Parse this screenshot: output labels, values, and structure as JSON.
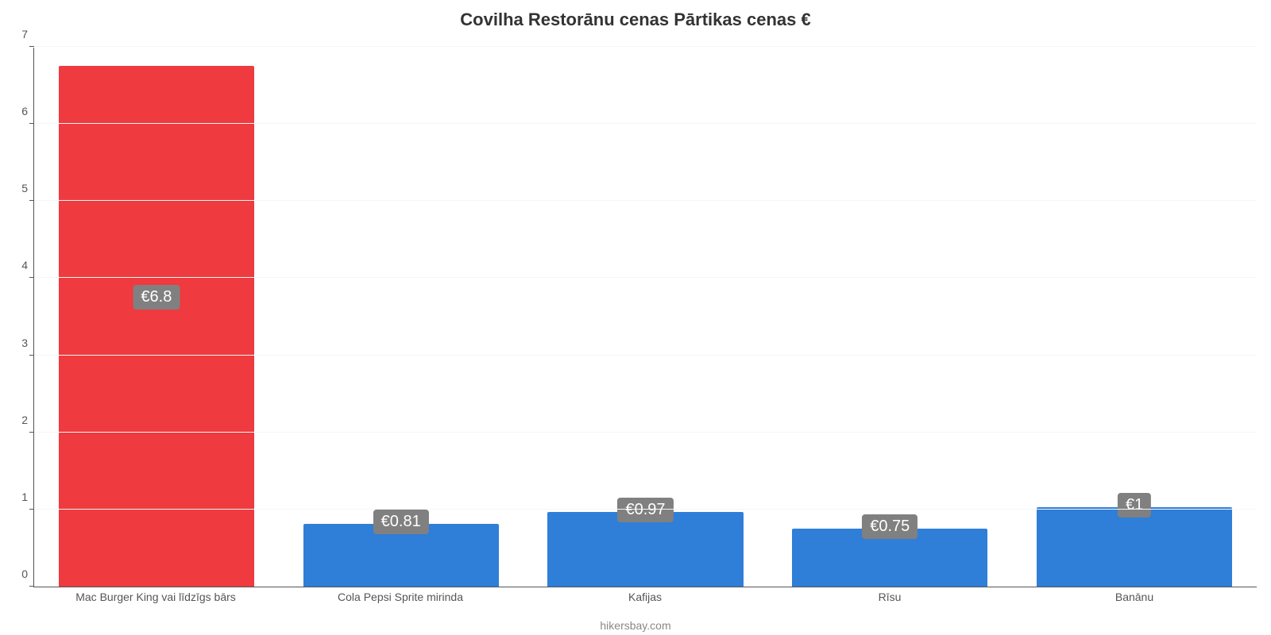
{
  "chart": {
    "type": "bar",
    "title": "Covilha Restorānu cenas Pārtikas cenas €",
    "title_fontsize": 22,
    "title_color": "#333333",
    "footer": "hikersbay.com",
    "footer_fontsize": 14,
    "footer_color": "#888888",
    "background_color": "#ffffff",
    "grid_color": "#f5f5f5",
    "axis_color": "#555555",
    "tick_fontsize": 14,
    "xlabel_fontsize": 14,
    "bar_label_fontsize": 20,
    "bar_label_bg": "#808080",
    "bar_label_text_color": "#ffffff",
    "bar_width_pct": 80,
    "y": {
      "min": 0,
      "max": 7,
      "ticks": [
        0,
        1,
        2,
        3,
        4,
        5,
        6,
        7
      ]
    },
    "categories": [
      "Mac Burger King vai līdzīgs bārs",
      "Cola Pepsi Sprite mirinda",
      "Kafijas",
      "Rīsu",
      "Banānu"
    ],
    "values": [
      6.75,
      0.81,
      0.97,
      0.75,
      1.03
    ],
    "value_labels": [
      "€6.8",
      "€0.81",
      "€0.97",
      "€0.75",
      "€1"
    ],
    "bar_colors": [
      "#ef3a3f",
      "#2f7ed8",
      "#2f7ed8",
      "#2f7ed8",
      "#2f7ed8"
    ]
  }
}
